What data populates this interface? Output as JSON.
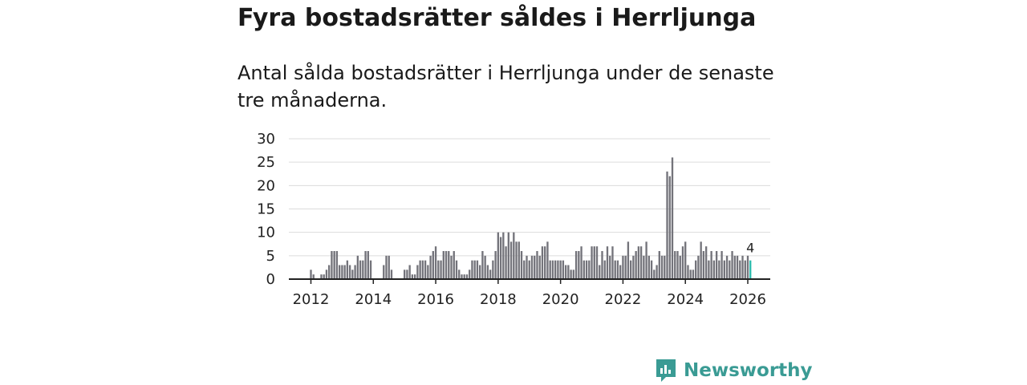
{
  "title": "Fyra bostadsrätter såldes i Herrljunga",
  "subtitle": "Antal sålda bostadsrätter i Herrljunga under de senaste tre månaderna.",
  "brand": {
    "name": "Newsworthy",
    "color": "#3a9b94"
  },
  "colors": {
    "bar": "#73737a",
    "highlight": "#2bbbad",
    "grid": "#dcdcdc",
    "axis": "#222222"
  },
  "chart_data": {
    "type": "bar",
    "title": "",
    "xlabel": "",
    "ylabel": "",
    "ylim": [
      0,
      30
    ],
    "yticks": [
      0,
      5,
      10,
      15,
      20,
      25,
      30
    ],
    "xticks": [
      "2012",
      "2014",
      "2016",
      "2018",
      "2020",
      "2022",
      "2024",
      "2026"
    ],
    "start": "2012-01",
    "end": "2026-01",
    "interval": "month",
    "highlight_last": true,
    "last_label": "4",
    "values": [
      2,
      1,
      0,
      0,
      1,
      1,
      2,
      3,
      6,
      6,
      6,
      3,
      3,
      3,
      4,
      3,
      2,
      3,
      5,
      4,
      4,
      6,
      6,
      4,
      0,
      0,
      0,
      0,
      3,
      5,
      5,
      2,
      0,
      0,
      0,
      0,
      2,
      2,
      3,
      1,
      1,
      3,
      4,
      4,
      4,
      3,
      5,
      6,
      7,
      4,
      4,
      6,
      6,
      6,
      5,
      6,
      4,
      2,
      1,
      1,
      1,
      2,
      4,
      4,
      4,
      3,
      6,
      5,
      3,
      2,
      4,
      6,
      10,
      9,
      10,
      7,
      10,
      8,
      10,
      8,
      8,
      6,
      4,
      5,
      4,
      5,
      5,
      6,
      5,
      7,
      7,
      8,
      4,
      4,
      4,
      4,
      4,
      4,
      3,
      3,
      2,
      2,
      6,
      6,
      7,
      4,
      4,
      4,
      7,
      7,
      7,
      3,
      6,
      4,
      7,
      5,
      7,
      4,
      4,
      3,
      5,
      5,
      8,
      4,
      5,
      6,
      7,
      7,
      5,
      8,
      5,
      4,
      2,
      3,
      6,
      5,
      5,
      23,
      22,
      26,
      6,
      6,
      5,
      7,
      8,
      3,
      2,
      2,
      4,
      5,
      8,
      6,
      7,
      4,
      6,
      4,
      6,
      4,
      6,
      4,
      5,
      4,
      6,
      5,
      5,
      4,
      5,
      4,
      5,
      4
    ]
  }
}
